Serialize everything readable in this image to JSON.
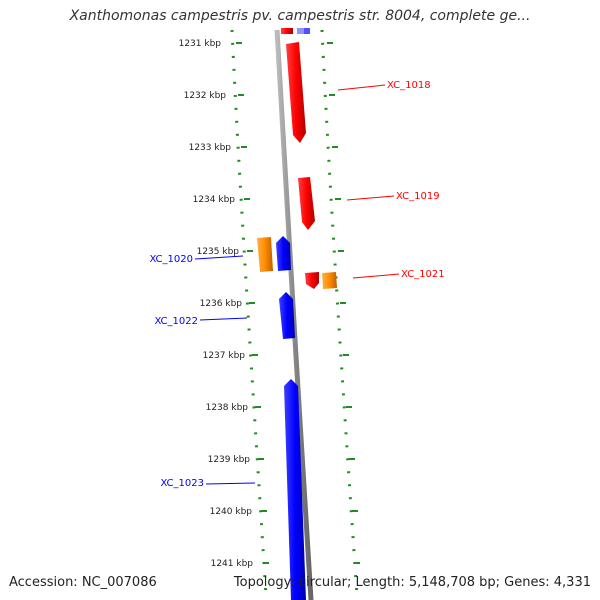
{
  "header": {
    "title": "Xanthomonas campestris pv. campestris str. 8004, complete ge..."
  },
  "footer": {
    "accession": "Accession: NC_007086",
    "summary": "Topology: circular; Length: 5,148,708 bp; Genes: 4,331"
  },
  "map": {
    "ticks": [
      "1231 kbp",
      "1232 kbp",
      "1233 kbp",
      "1234 kbp",
      "1235 kbp",
      "1236 kbp",
      "1237 kbp",
      "1238 kbp",
      "1239 kbp",
      "1240 kbp",
      "1241 kbp"
    ],
    "gene_labels": [
      {
        "name": "XC_1018",
        "strand": "reverse",
        "color": "#ff0000"
      },
      {
        "name": "XC_1019",
        "strand": "reverse",
        "color": "#ff0000"
      },
      {
        "name": "XC_1020",
        "strand": "forward",
        "color": "#0000ff"
      },
      {
        "name": "XC_1021",
        "strand": "reverse",
        "color": "#ff0000"
      },
      {
        "name": "XC_1022",
        "strand": "forward",
        "color": "#0000ff"
      },
      {
        "name": "XC_1023",
        "strand": "forward",
        "color": "#0000ff"
      }
    ],
    "colors": {
      "reverse_gene": "#ff0000",
      "forward_gene": "#0000ff",
      "other_feature": "#ff8c00",
      "backbone": "#888888",
      "tick_marks": "#228b22"
    }
  }
}
